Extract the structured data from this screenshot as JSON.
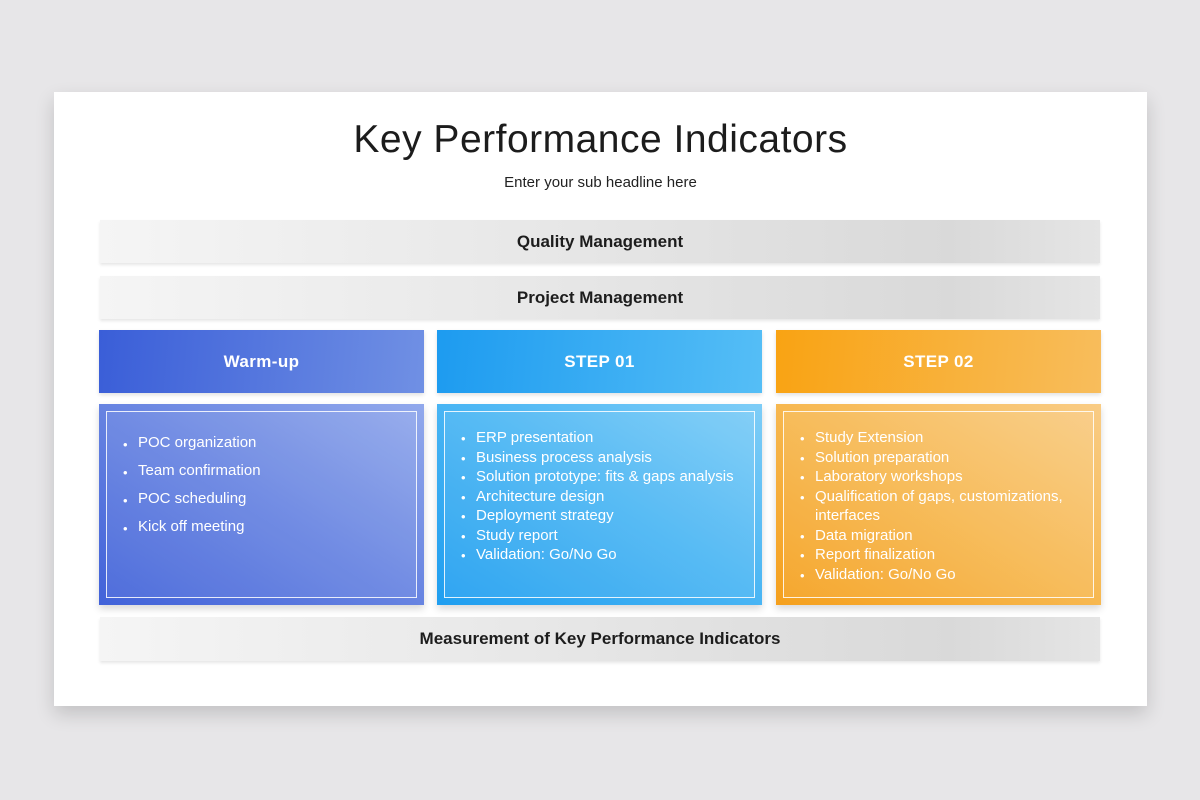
{
  "slide": {
    "title": "Key Performance Indicators",
    "subtitle": "Enter your sub headline here"
  },
  "bands": [
    {
      "label": "Quality Management"
    },
    {
      "label": "Project Management"
    },
    {
      "label": "Measurement of Key Performance Indicators"
    }
  ],
  "columns": [
    {
      "header": "Warm-up",
      "header_gradient": [
        "#3a5ed8",
        "#7090e4"
      ],
      "box_gradient": [
        "#4162d9",
        "#92a9ec"
      ],
      "items": [
        "POC organization",
        "Team confirmation",
        "POC scheduling",
        "Kick off meeting"
      ]
    },
    {
      "header": "STEP 01",
      "header_gradient": [
        "#1d9bf0",
        "#55bef6"
      ],
      "box_gradient": [
        "#1f9ef0",
        "#7ecdf7"
      ],
      "items": [
        "ERP presentation",
        "Business process analysis",
        "Solution prototype: fits & gaps analysis",
        "Architecture design",
        "Deployment strategy",
        "Study report",
        "Validation: Go/No Go"
      ]
    },
    {
      "header": "STEP 02",
      "header_gradient": [
        "#f9a313",
        "#f8bd5c"
      ],
      "box_gradient": [
        "#f5a01d",
        "#f9cc85"
      ],
      "items": [
        "Study Extension",
        "Solution preparation",
        "Laboratory workshops",
        "Qualification of gaps, customizations, interfaces",
        "Data migration",
        "Report finalization",
        "Validation: Go/No Go"
      ]
    }
  ],
  "colors": {
    "page_background": "#e7e6e8",
    "card_background": "#ffffff",
    "band_text": "#1d1d1d",
    "column_text": "#ffffff"
  }
}
